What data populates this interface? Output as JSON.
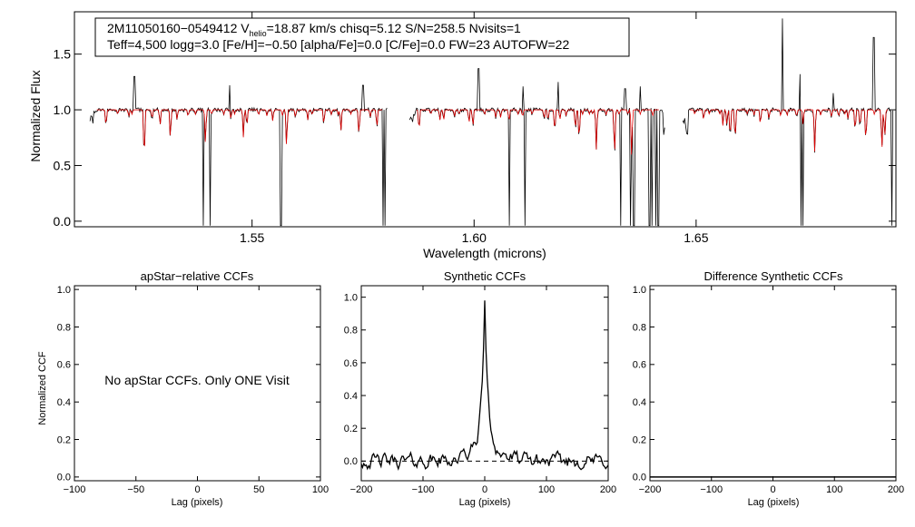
{
  "chart_data": [
    {
      "type": "line",
      "id": "spectrum",
      "info_line1_a": "2M11050160−0549412  V",
      "info_line1_sub": "helio",
      "info_line1_b": "=18.87 km/s  chisq=5.12  S/N=258.5  Nvisits=1",
      "info_line2": "Teff=4,500 logg=3.0 [Fe/H]=−0.50 [alpha/Fe]=0.0 [C/Fe]=0.0 FW=23 AUTOFW=22",
      "xlabel": "Wavelength (microns)",
      "ylabel": "Normalized Flux",
      "xlim": [
        1.51,
        1.695
      ],
      "ylim": [
        -0.05,
        1.88
      ],
      "xticks": [
        {
          "v": 1.55,
          "label": "1.55"
        },
        {
          "v": 1.6,
          "label": "1.60"
        },
        {
          "v": 1.65,
          "label": "1.65"
        }
      ],
      "yticks": [
        {
          "v": 0.0,
          "label": "0.0"
        },
        {
          "v": 0.5,
          "label": "0.5"
        },
        {
          "v": 1.0,
          "label": "1.0"
        },
        {
          "v": 1.5,
          "label": "1.5"
        }
      ],
      "chips": [
        [
          1.5135,
          1.5805
        ],
        [
          1.5855,
          1.643
        ],
        [
          1.647,
          1.6945
        ]
      ],
      "series": [
        {
          "name": "observed",
          "color": "#000000"
        },
        {
          "name": "synthetic model",
          "color": "#dd0000"
        }
      ],
      "emission_lines": [
        [
          1.5235,
          1.3
        ],
        [
          1.545,
          1.22
        ],
        [
          1.575,
          1.22
        ],
        [
          1.601,
          1.37
        ],
        [
          1.611,
          1.21
        ],
        [
          1.619,
          1.25
        ],
        [
          1.634,
          1.19
        ],
        [
          1.6375,
          1.21
        ],
        [
          1.6695,
          1.82
        ],
        [
          1.6735,
          1.32
        ],
        [
          1.6808,
          1.15
        ],
        [
          1.69,
          1.65
        ]
      ],
      "drop_lines": [
        1.5135,
        1.539,
        1.5405,
        1.5565,
        1.5795,
        1.58,
        1.608,
        1.6115,
        1.633,
        1.6352,
        1.636,
        1.6395,
        1.64,
        1.641,
        1.6415,
        1.6736,
        1.6741,
        1.694
      ]
    },
    {
      "type": "line",
      "id": "apstar-ccf",
      "title": "apStar−relative CCFs",
      "xlabel": "Lag (pixels)",
      "ylabel": "Normalized CCF",
      "xlim": [
        -100,
        100
      ],
      "ylim": [
        -0.02,
        1.02
      ],
      "xticks": [
        {
          "v": -100,
          "label": "−100"
        },
        {
          "v": -50,
          "label": "−50"
        },
        {
          "v": 0,
          "label": "0"
        },
        {
          "v": 50,
          "label": "50"
        },
        {
          "v": 100,
          "label": "100"
        }
      ],
      "yticks": [
        {
          "v": 0.0,
          "label": "0.0"
        },
        {
          "v": 0.2,
          "label": "0.2"
        },
        {
          "v": 0.4,
          "label": "0.4"
        },
        {
          "v": 0.6,
          "label": "0.6"
        },
        {
          "v": 0.8,
          "label": "0.8"
        },
        {
          "v": 1.0,
          "label": "1.0"
        }
      ],
      "annotation": "No apStar CCFs.  Only ONE Visit"
    },
    {
      "type": "line",
      "id": "synthetic-ccf",
      "title": "Synthetic CCFs",
      "xlabel": "Lag (pixels)",
      "xlim": [
        -200,
        200
      ],
      "ylim": [
        -0.12,
        1.07
      ],
      "xticks": [
        {
          "v": -200,
          "label": "−200"
        },
        {
          "v": -100,
          "label": "−100"
        },
        {
          "v": 0,
          "label": "0"
        },
        {
          "v": 100,
          "label": "100"
        },
        {
          "v": 200,
          "label": "200"
        }
      ],
      "yticks": [
        {
          "v": 0.0,
          "label": "0.0"
        },
        {
          "v": 0.2,
          "label": "0.2"
        },
        {
          "v": 0.4,
          "label": "0.4"
        },
        {
          "v": 0.6,
          "label": "0.6"
        },
        {
          "v": 0.8,
          "label": "0.8"
        },
        {
          "v": 1.0,
          "label": "1.0"
        }
      ],
      "peak": {
        "lag": 0,
        "value": 1.0
      },
      "zero_line": 0.0
    },
    {
      "type": "line",
      "id": "difference-ccf",
      "title": "Difference Synthetic CCFs",
      "xlabel": "Lag (pixels)",
      "xlim": [
        -200,
        200
      ],
      "ylim": [
        -0.02,
        1.02
      ],
      "xticks": [
        {
          "v": -200,
          "label": "−200"
        },
        {
          "v": -100,
          "label": "−100"
        },
        {
          "v": 0,
          "label": "0"
        },
        {
          "v": 100,
          "label": "100"
        },
        {
          "v": 200,
          "label": "200"
        }
      ],
      "yticks": [
        {
          "v": 0.0,
          "label": "0.0"
        },
        {
          "v": 0.2,
          "label": "0.2"
        },
        {
          "v": 0.4,
          "label": "0.4"
        },
        {
          "v": 0.6,
          "label": "0.6"
        },
        {
          "v": 0.8,
          "label": "0.8"
        },
        {
          "v": 1.0,
          "label": "1.0"
        }
      ]
    }
  ]
}
